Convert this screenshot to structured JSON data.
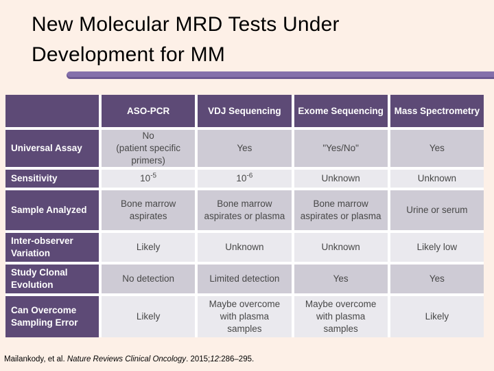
{
  "slide": {
    "title_line1": "New Molecular MRD Tests Under",
    "title_line2": "Development for MM"
  },
  "colors": {
    "slide_background": "#fdf0e7",
    "header_purple": "#5d4a76",
    "row_shade_dark": "#cecbd5",
    "row_shade_light": "#eae9ee",
    "accent_bar_purple": "#8470ab",
    "cell_text": "#474747"
  },
  "table": {
    "headers": [
      "",
      "ASO-PCR",
      "VDJ Sequencing",
      "Exome Sequencing",
      "Mass Spectrometry"
    ],
    "rows": [
      {
        "label": "Universal Assay",
        "cells": [
          "No\n(patient specific primers)",
          "Yes",
          "\"Yes/No\"",
          "Yes"
        ]
      },
      {
        "label": "Sensitivity",
        "cells": [
          {
            "base": "10",
            "sup": "-5"
          },
          {
            "base": "10",
            "sup": "-6"
          },
          "Unknown",
          "Unknown"
        ]
      },
      {
        "label": "Sample Analyzed",
        "cells": [
          "Bone marrow aspirates",
          "Bone marrow aspirates or plasma",
          "Bone marrow aspirates or plasma",
          "Urine or serum"
        ]
      },
      {
        "label": "Inter-observer Variation",
        "cells": [
          "Likely",
          "Unknown",
          "Unknown",
          "Likely low"
        ]
      },
      {
        "label": "Study Clonal Evolution",
        "cells": [
          "No detection",
          "Limited detection",
          "Yes",
          "Yes"
        ]
      },
      {
        "label": "Can Overcome Sampling Error",
        "cells": [
          "Likely",
          "Maybe overcome with plasma samples",
          "Maybe overcome with plasma samples",
          "Likely"
        ]
      }
    ]
  },
  "footer": {
    "authors": "Mailankody, et al. ",
    "journal": "Nature Reviews Clinical Oncology",
    "separator": ". 2015;",
    "volume": "12",
    "pages": ":286–295."
  }
}
